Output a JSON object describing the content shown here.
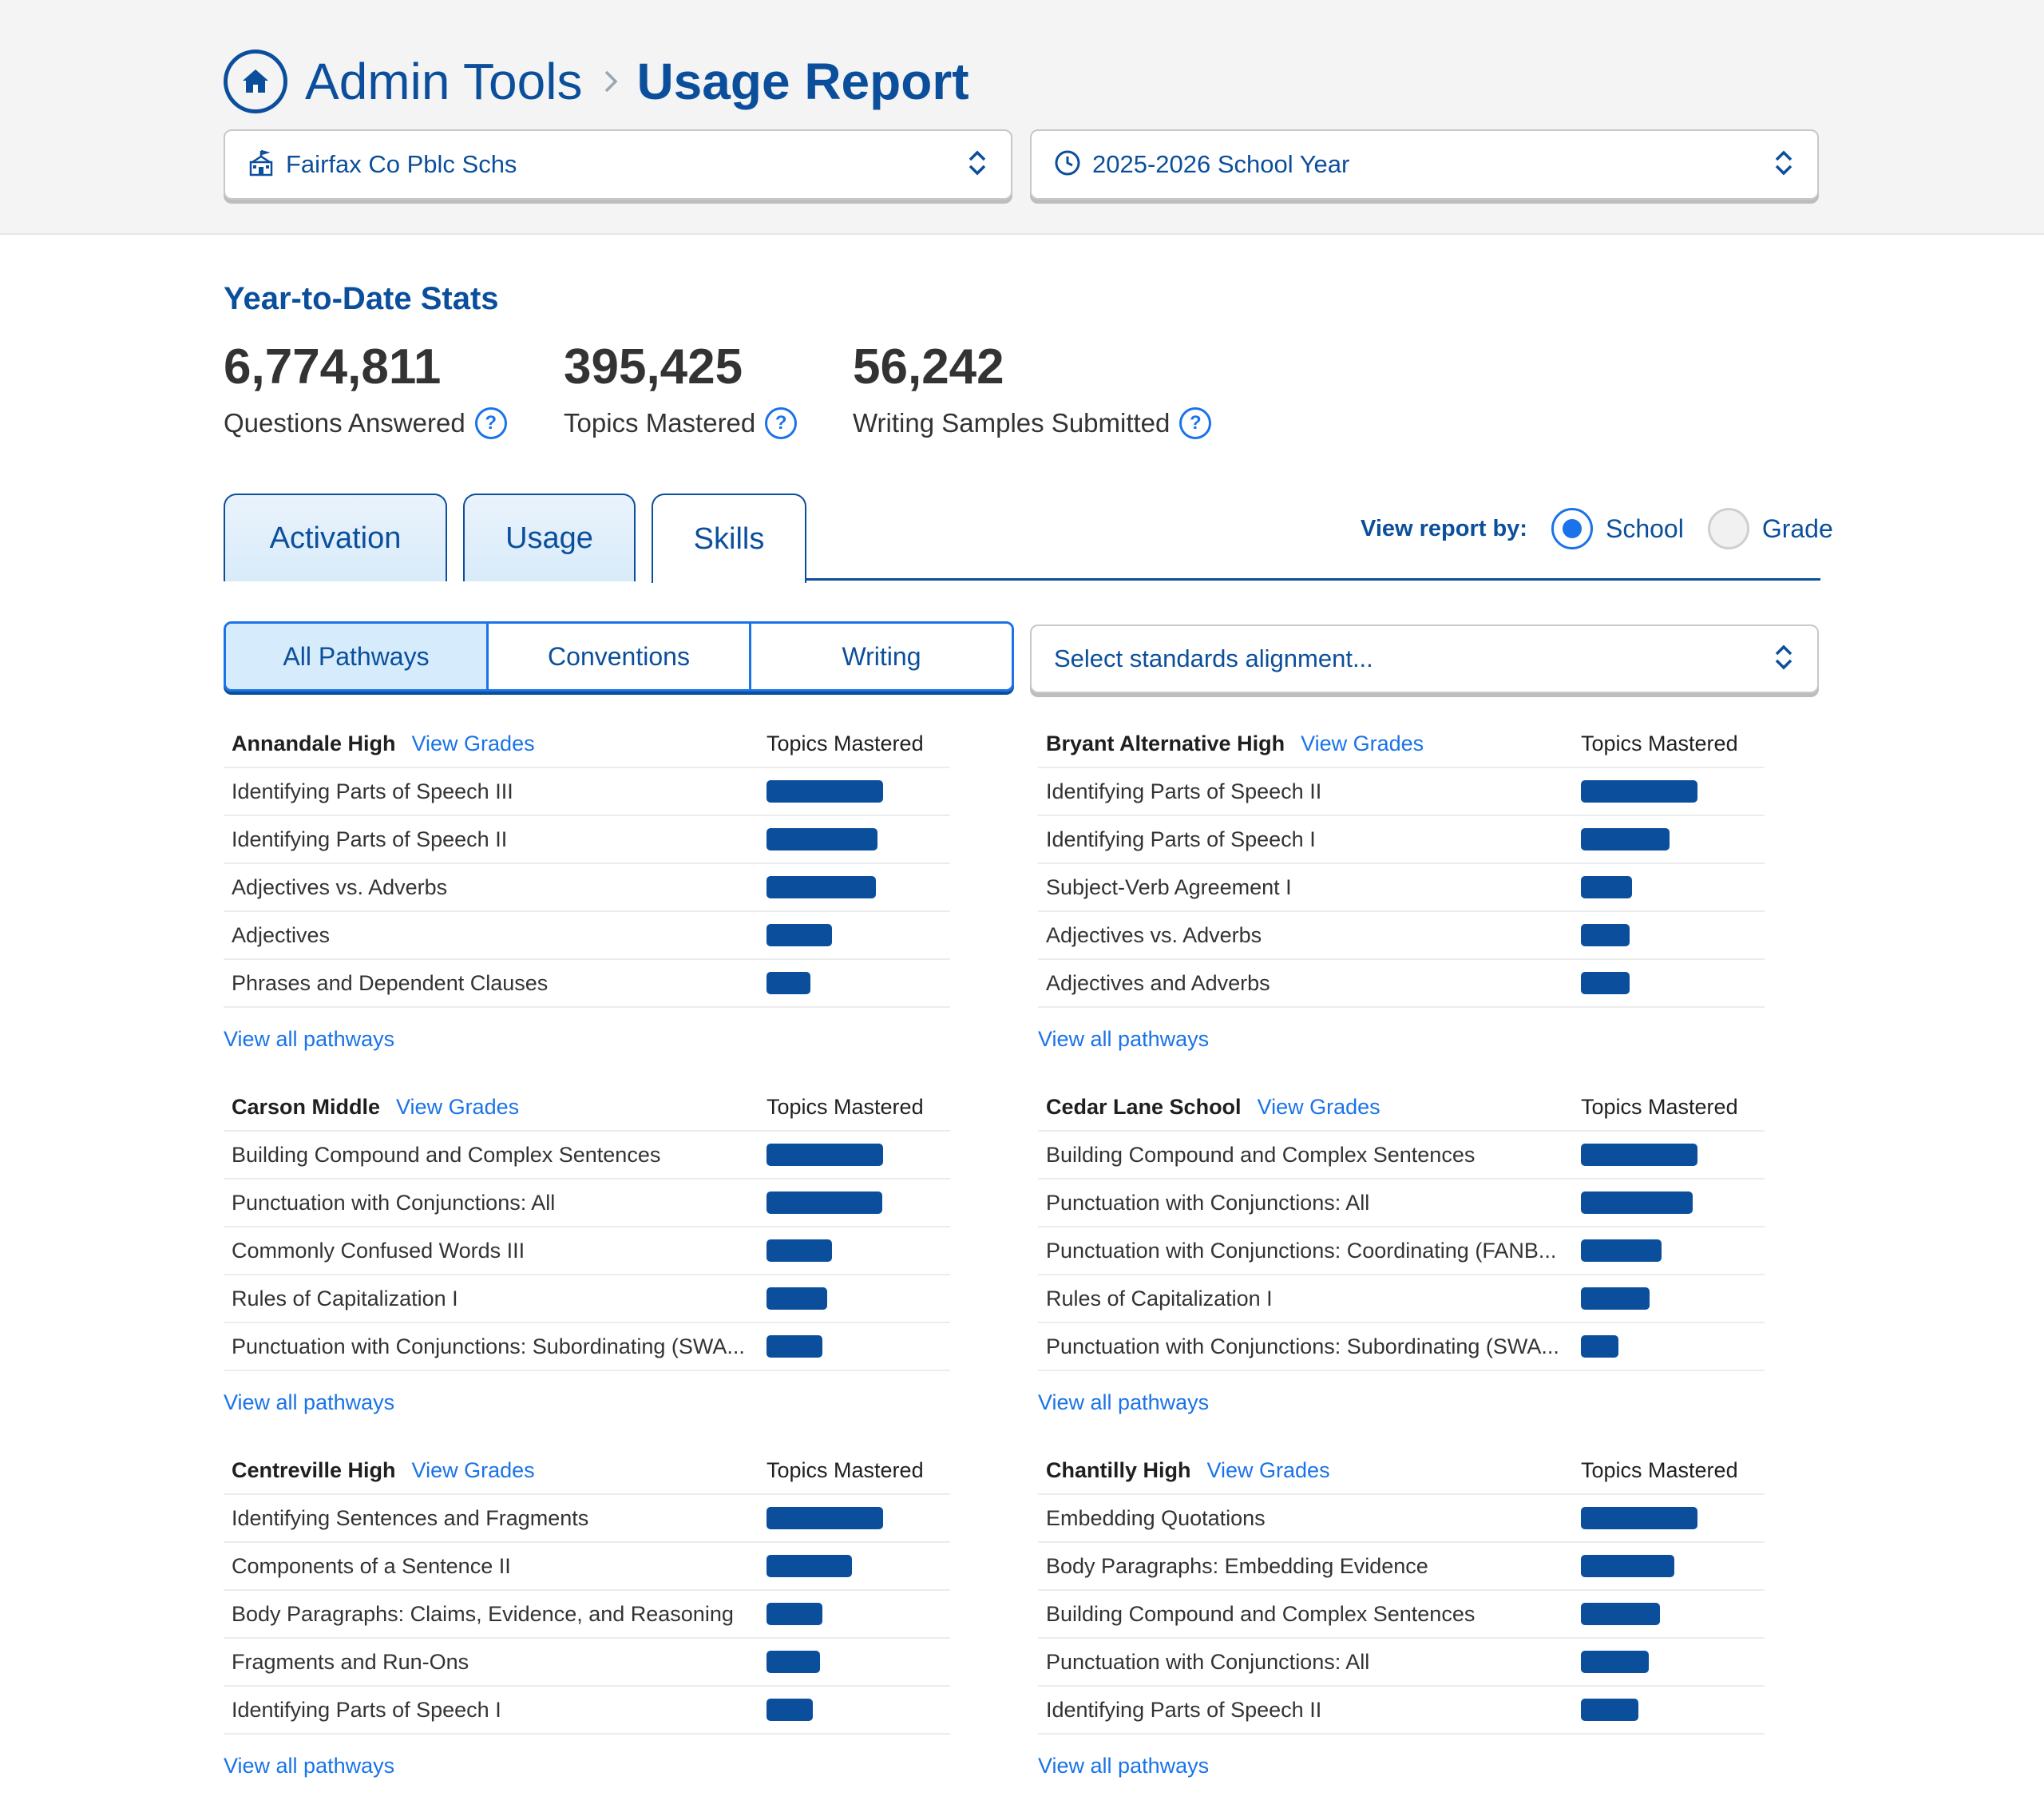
{
  "header": {
    "breadcrumb_root": "Admin Tools",
    "breadcrumb_current": "Usage Report"
  },
  "filters": {
    "district": "Fairfax Co Pblc Schs",
    "year": "2025-2026 School Year",
    "standards_placeholder": "Select standards alignment..."
  },
  "stats": {
    "title": "Year-to-Date Stats",
    "items": [
      {
        "value": "6,774,811",
        "label": "Questions Answered"
      },
      {
        "value": "395,425",
        "label": "Topics Mastered"
      },
      {
        "value": "56,242",
        "label": "Writing Samples Submitted"
      }
    ]
  },
  "tabs": [
    "Activation",
    "Usage",
    "Skills"
  ],
  "active_tab": "Skills",
  "view_by": {
    "label": "View report by:",
    "options": [
      "School",
      "Grade"
    ],
    "selected": "School"
  },
  "pathways": {
    "options": [
      "All Pathways",
      "Conventions",
      "Writing"
    ],
    "selected": "All Pathways"
  },
  "colors": {
    "primary": "#0b4f9c",
    "link": "#1a73e8",
    "bar": "#0b4f9c"
  },
  "labels": {
    "view_grades": "View Grades",
    "topics_mastered": "Topics Mastered",
    "view_all": "View all pathways"
  },
  "schools": [
    {
      "name": "Annandale High",
      "skills": [
        {
          "name": "Identifying Parts of Speech III",
          "value": 1.0
        },
        {
          "name": "Identifying Parts of Speech II",
          "value": 0.95
        },
        {
          "name": "Adjectives vs. Adverbs",
          "value": 0.94
        },
        {
          "name": "Adjectives",
          "value": 0.56
        },
        {
          "name": "Phrases and Dependent Clauses",
          "value": 0.38
        }
      ]
    },
    {
      "name": "Bryant Alternative High",
      "skills": [
        {
          "name": "Identifying Parts of Speech II",
          "value": 1.0
        },
        {
          "name": "Identifying Parts of Speech I",
          "value": 0.76
        },
        {
          "name": "Subject-Verb Agreement I",
          "value": 0.44
        },
        {
          "name": "Adjectives vs. Adverbs",
          "value": 0.42
        },
        {
          "name": "Adjectives and Adverbs",
          "value": 0.42
        }
      ]
    },
    {
      "name": "Carson Middle",
      "skills": [
        {
          "name": "Building Compound and Complex Sentences",
          "value": 1.0
        },
        {
          "name": "Punctuation with Conjunctions: All",
          "value": 0.99
        },
        {
          "name": "Commonly Confused Words III",
          "value": 0.56
        },
        {
          "name": "Rules of Capitalization I",
          "value": 0.52
        },
        {
          "name": "Punctuation with Conjunctions: Subordinating (SWA...",
          "value": 0.48
        }
      ]
    },
    {
      "name": "Cedar Lane School",
      "skills": [
        {
          "name": "Building Compound and Complex Sentences",
          "value": 1.0
        },
        {
          "name": "Punctuation with Conjunctions: All",
          "value": 0.96
        },
        {
          "name": "Punctuation with Conjunctions: Coordinating (FANB...",
          "value": 0.69
        },
        {
          "name": "Rules of Capitalization I",
          "value": 0.59
        },
        {
          "name": "Punctuation with Conjunctions: Subordinating (SWA...",
          "value": 0.32
        }
      ]
    },
    {
      "name": "Centreville High",
      "skills": [
        {
          "name": "Identifying Sentences and Fragments",
          "value": 1.0
        },
        {
          "name": "Components of a Sentence II",
          "value": 0.73
        },
        {
          "name": "Body Paragraphs: Claims, Evidence, and Reasoning",
          "value": 0.48
        },
        {
          "name": "Fragments and Run-Ons",
          "value": 0.46
        },
        {
          "name": "Identifying Parts of Speech I",
          "value": 0.4
        }
      ]
    },
    {
      "name": "Chantilly High",
      "skills": [
        {
          "name": "Embedding Quotations",
          "value": 1.0
        },
        {
          "name": "Body Paragraphs: Embedding Evidence",
          "value": 0.8
        },
        {
          "name": "Building Compound and Complex Sentences",
          "value": 0.68
        },
        {
          "name": "Punctuation with Conjunctions: All",
          "value": 0.58
        },
        {
          "name": "Identifying Parts of Speech II",
          "value": 0.49
        }
      ]
    }
  ]
}
